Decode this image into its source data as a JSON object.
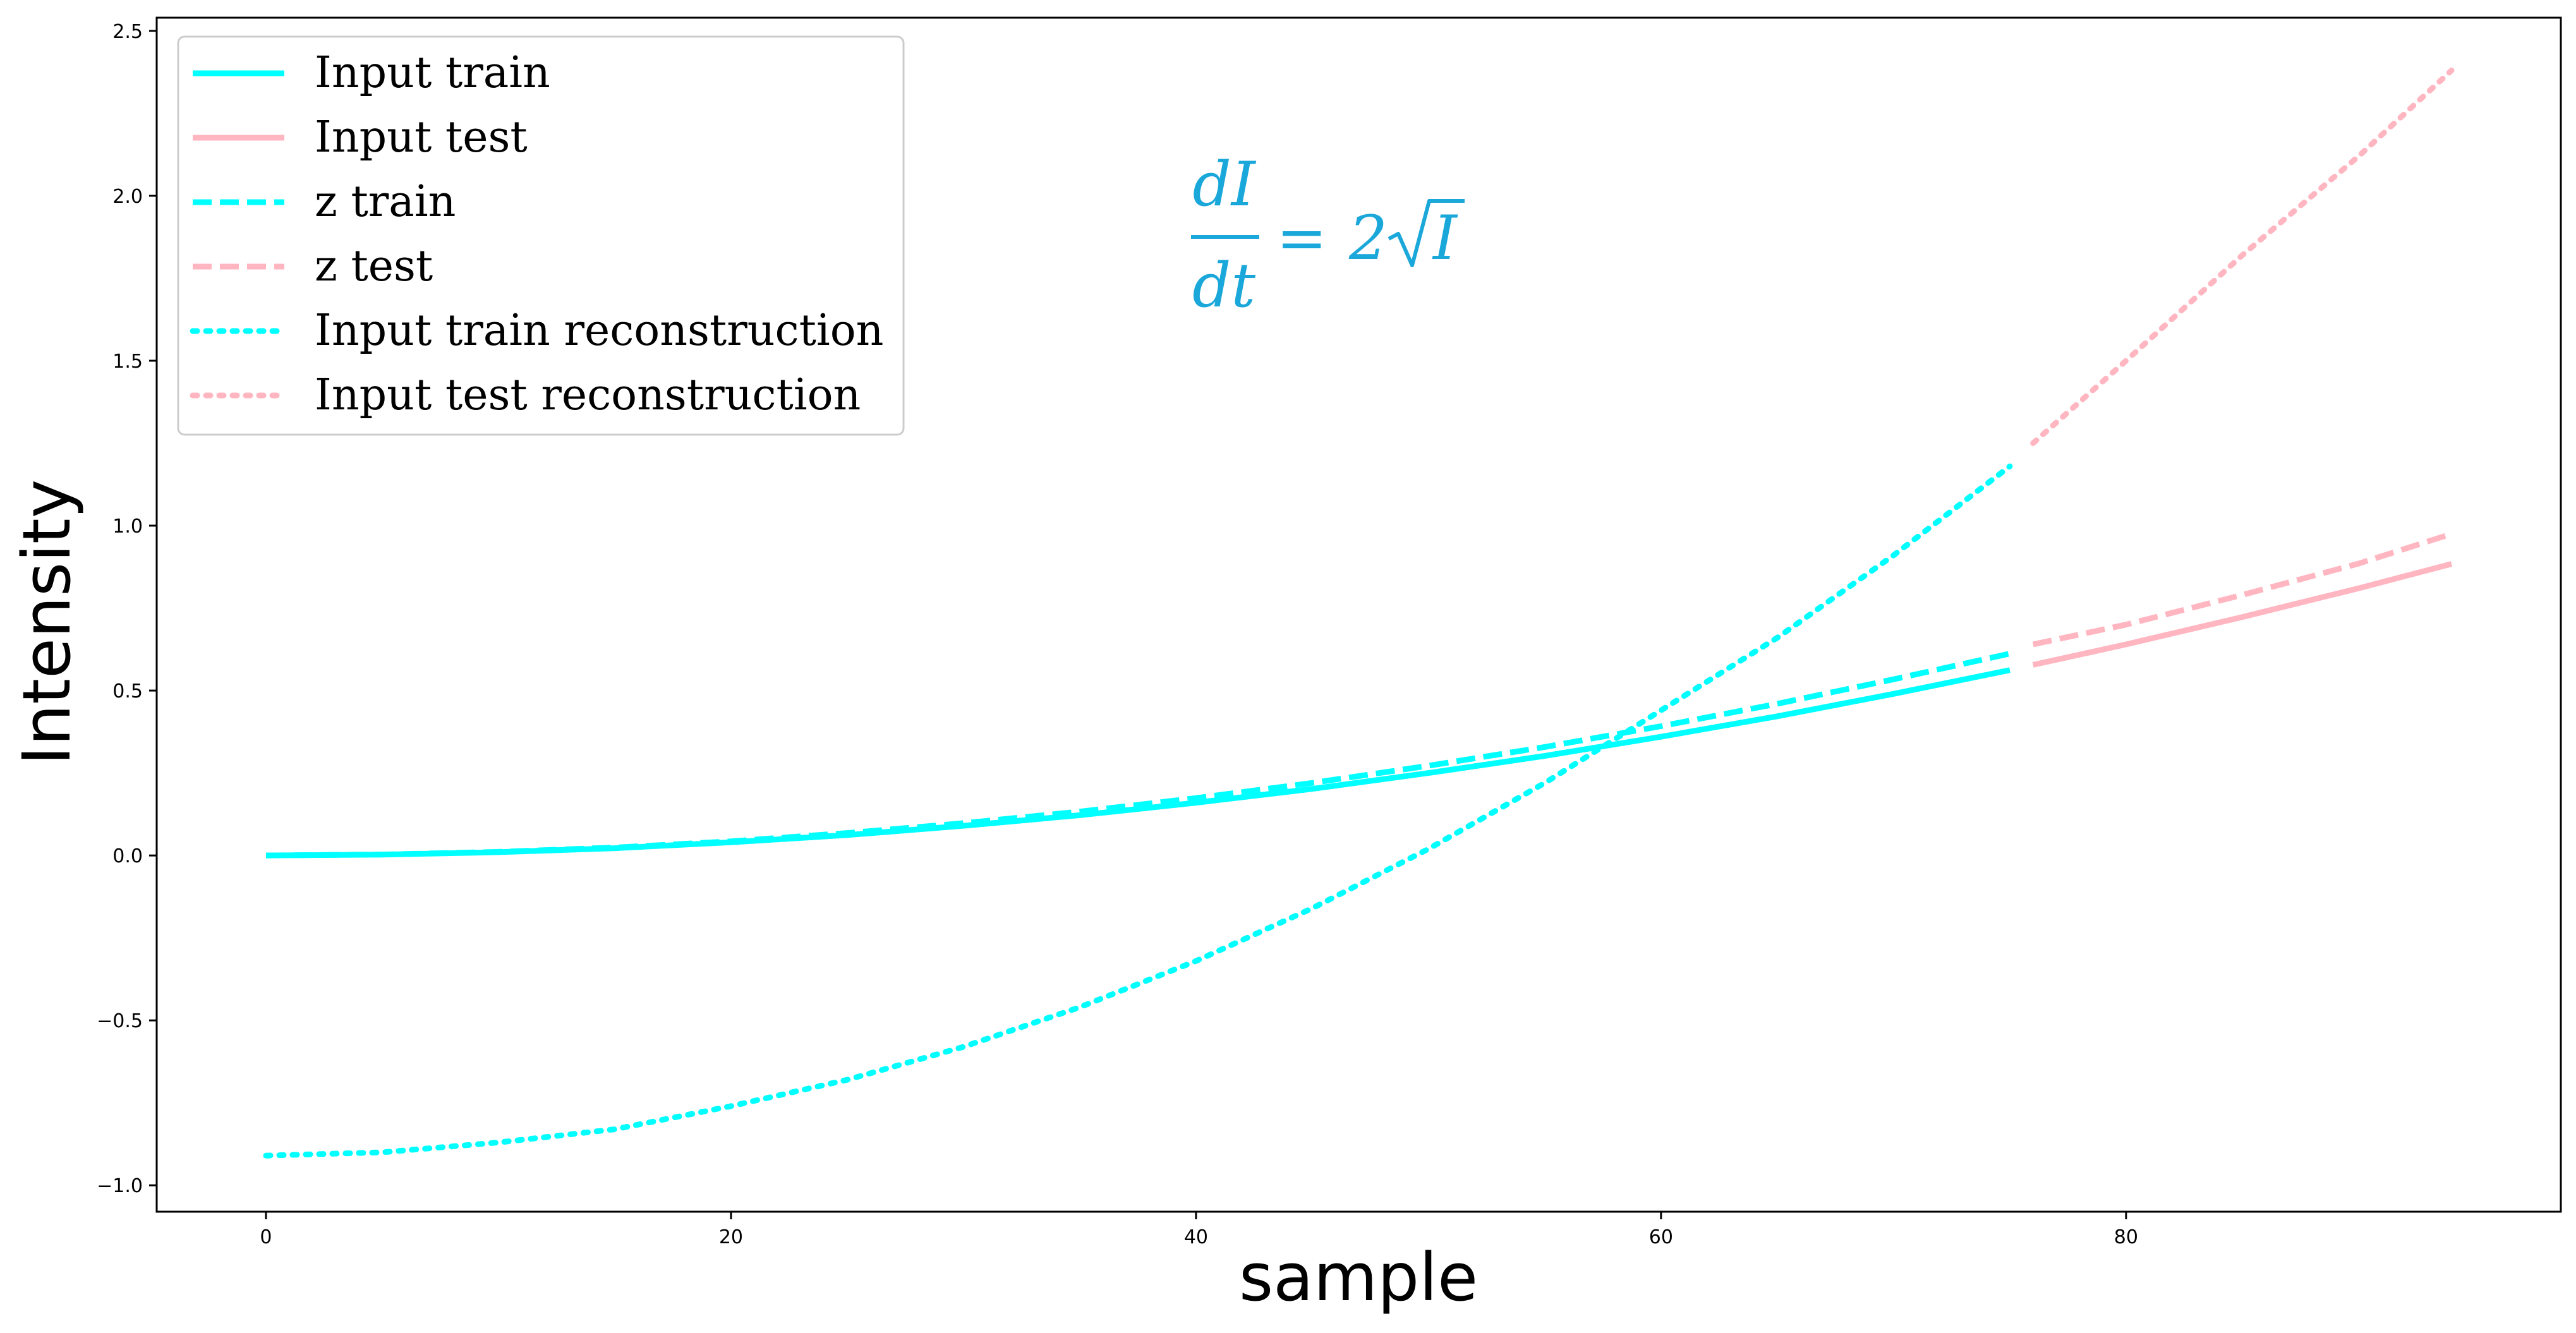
{
  "chart_data": {
    "type": "line",
    "xlabel": "sample",
    "ylabel": "Intensity",
    "xlim": [
      -4.7,
      98.7
    ],
    "ylim": [
      -1.08,
      2.54
    ],
    "xticks": [
      0,
      20,
      40,
      60,
      80
    ],
    "yticks": [
      -1.0,
      -0.5,
      0.0,
      0.5,
      1.0,
      1.5,
      2.0,
      2.5
    ],
    "ytick_labels": [
      "−1.0",
      "−0.5",
      "0.0",
      "0.5",
      "1.0",
      "1.5",
      "2.0",
      "2.5"
    ],
    "grid": false,
    "legend_position": "top-left",
    "annotation": {
      "numerator": "dI",
      "denominator": "dt",
      "rhs_equals": "=",
      "rhs_coefficient": "2",
      "rhs_radicand": "I"
    },
    "colors": {
      "train": "#00ffff",
      "test": "#ffb6c1",
      "formula": "#1aa7d9"
    },
    "series": [
      {
        "name": "Input train",
        "style": "solid",
        "color": "#00ffff",
        "x": [
          0,
          5,
          10,
          15,
          20,
          25,
          30,
          35,
          40,
          45,
          50,
          55,
          60,
          65,
          70,
          75
        ],
        "y": [
          0.0,
          0.0025,
          0.01,
          0.022,
          0.04,
          0.062,
          0.09,
          0.122,
          0.16,
          0.202,
          0.25,
          0.302,
          0.36,
          0.422,
          0.49,
          0.562
        ]
      },
      {
        "name": "Input test",
        "style": "solid",
        "color": "#ffb6c1",
        "x": [
          76,
          80,
          85,
          90,
          94
        ],
        "y": [
          0.578,
          0.64,
          0.723,
          0.81,
          0.884
        ]
      },
      {
        "name": "z train",
        "style": "dashed",
        "color": "#00ffff",
        "x": [
          0,
          5,
          10,
          15,
          20,
          25,
          30,
          35,
          40,
          45,
          50,
          55,
          60,
          65,
          70,
          75
        ],
        "y": [
          0.0,
          0.003,
          0.011,
          0.024,
          0.043,
          0.068,
          0.098,
          0.133,
          0.174,
          0.22,
          0.272,
          0.329,
          0.392,
          0.46,
          0.534,
          0.612
        ]
      },
      {
        "name": "z test",
        "style": "dashed",
        "color": "#ffb6c1",
        "x": [
          76,
          80,
          85,
          90,
          94
        ],
        "y": [
          0.64,
          0.7,
          0.79,
          0.885,
          0.975
        ]
      },
      {
        "name": "Input train reconstruction",
        "style": "dotted",
        "color": "#00ffff",
        "x": [
          0,
          5,
          10,
          15,
          20,
          25,
          30,
          35,
          40,
          45,
          50,
          55,
          60,
          65,
          70,
          75
        ],
        "y": [
          -0.91,
          -0.9,
          -0.87,
          -0.83,
          -0.76,
          -0.68,
          -0.58,
          -0.46,
          -0.32,
          -0.16,
          0.02,
          0.22,
          0.44,
          0.66,
          0.91,
          1.18
        ]
      },
      {
        "name": "Input test reconstruction",
        "style": "dotted",
        "color": "#ffb6c1",
        "x": [
          76,
          80,
          85,
          90,
          94
        ],
        "y": [
          1.25,
          1.5,
          1.82,
          2.12,
          2.38
        ]
      }
    ]
  }
}
